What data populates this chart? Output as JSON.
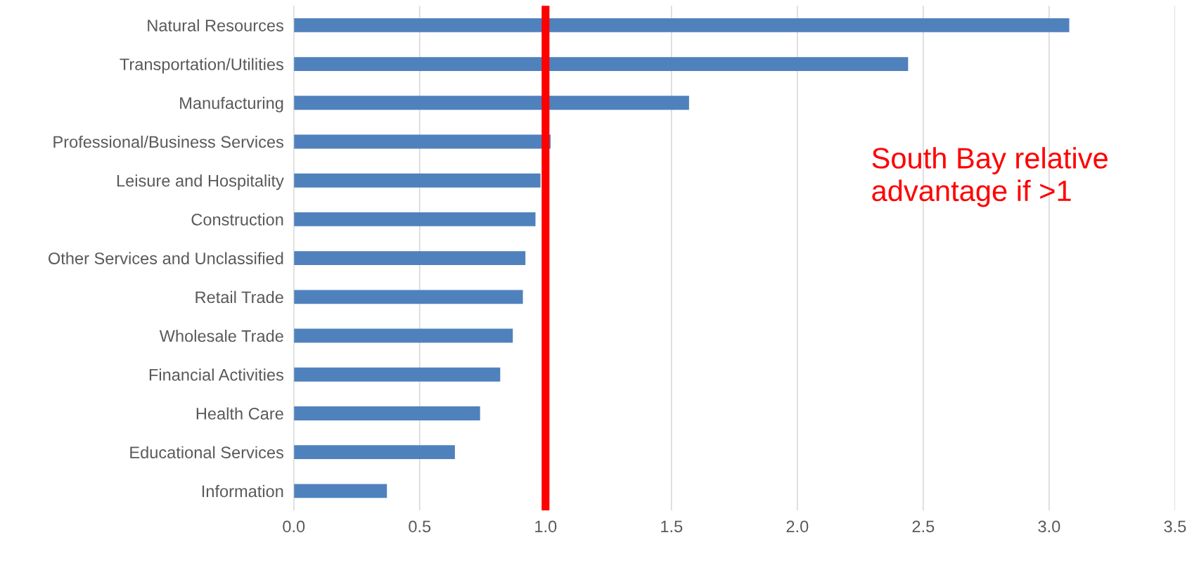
{
  "chart_data": {
    "type": "bar",
    "orientation": "horizontal",
    "categories": [
      "Natural Resources",
      "Transportation/Utilities",
      "Manufacturing",
      "Professional/Business Services",
      "Leisure and Hospitality",
      "Construction",
      "Other Services and Unclassified",
      "Retail Trade",
      "Wholesale Trade",
      "Financial Activities",
      "Health Care",
      "Educational Services",
      "Information"
    ],
    "values": [
      3.08,
      2.44,
      1.57,
      1.02,
      0.98,
      0.96,
      0.92,
      0.91,
      0.87,
      0.82,
      0.74,
      0.64,
      0.37
    ],
    "color": "#4f81bd",
    "xlim": [
      0,
      3.5
    ],
    "xticks": [
      {
        "value": 0,
        "label": "0.0"
      },
      {
        "value": 0.5,
        "label": "0.5"
      },
      {
        "value": 1,
        "label": "1.0"
      },
      {
        "value": 1.5,
        "label": "1.5"
      },
      {
        "value": 2,
        "label": "2.0"
      },
      {
        "value": 2.5,
        "label": "2.5"
      },
      {
        "value": 3,
        "label": "3.0"
      },
      {
        "value": 3.5,
        "label": "3.5"
      }
    ],
    "grid": "x",
    "ref_lines": [
      {
        "axis": "x",
        "value": 1,
        "color": "#ff0000"
      }
    ],
    "annotations": [
      "South Bay relative advantage if >1"
    ]
  }
}
